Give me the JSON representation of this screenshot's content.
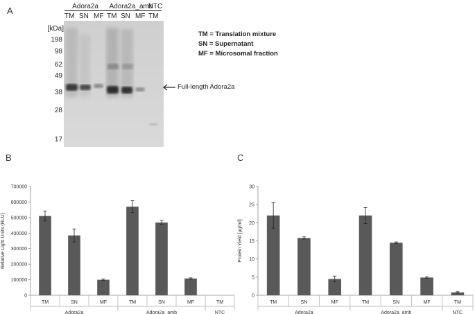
{
  "panels": {
    "a_label": "A",
    "b_label": "B",
    "c_label": "C"
  },
  "blot": {
    "groups": [
      "Adora2a",
      "Adora2a_amb",
      "NTC"
    ],
    "lanes": [
      "TM",
      "SN",
      "MF",
      "TM",
      "SN",
      "MF",
      "TM"
    ],
    "unit_label": "[kDa]",
    "markers": [
      "198",
      "98",
      "62",
      "49",
      "38",
      "28",
      "17"
    ],
    "annotation": "Full-length Adora2a"
  },
  "legend": [
    "TM = Translation mixture",
    "SN  = Supernatant",
    "MF = Microsomal fraction"
  ],
  "chart_data": [
    {
      "type": "bar",
      "categories": [
        "TM",
        "SN",
        "MF",
        "TM",
        "SN",
        "MF",
        "TM"
      ],
      "groups": [
        "Adora2a",
        "Adora2a_amb",
        "NTC"
      ],
      "values": [
        510000,
        385000,
        100000,
        570000,
        468000,
        108000,
        0
      ],
      "errors": [
        32000,
        42000,
        5000,
        38000,
        12000,
        4000,
        0
      ],
      "ylabel": "Relative Light Units (RLU)",
      "ylim": [
        0,
        700000
      ],
      "yticks": [
        "0",
        "100000",
        "200000",
        "300000",
        "400000",
        "500000",
        "600000",
        "700000"
      ],
      "grid": false,
      "bar_color": "#595959"
    },
    {
      "type": "bar",
      "categories": [
        "TM",
        "SN",
        "MF",
        "TM",
        "SN",
        "MF",
        "TM"
      ],
      "groups": [
        "Adora2a",
        "Adora2a_amb",
        "NTC"
      ],
      "values": [
        22,
        15.8,
        4.5,
        22,
        14.5,
        4.9,
        0.8
      ],
      "errors": [
        3.5,
        0.3,
        0.8,
        2.2,
        0.2,
        0.2,
        0.2
      ],
      "ylabel": "Protein Yield [µg/ml]",
      "ylim": [
        0,
        30
      ],
      "yticks": [
        "0",
        "5",
        "10",
        "15",
        "20",
        "25",
        "30"
      ],
      "grid": false,
      "bar_color": "#595959"
    }
  ]
}
